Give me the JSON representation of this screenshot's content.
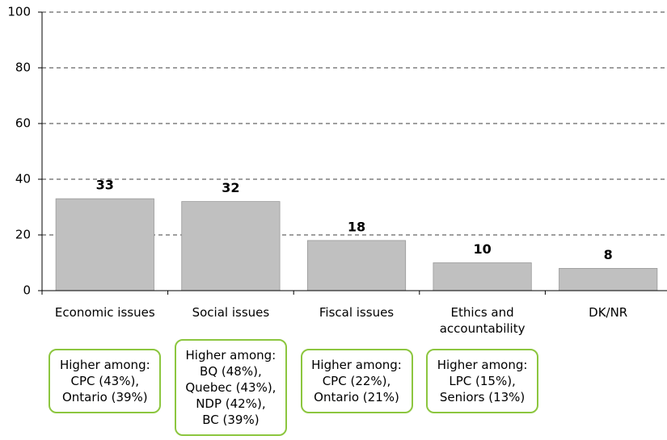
{
  "chart_data": {
    "type": "bar",
    "categories": [
      "Economic issues",
      "Social issues",
      "Fiscal issues",
      "Ethics and accountability",
      "DK/NR"
    ],
    "values": [
      33,
      32,
      18,
      10,
      8
    ],
    "color": "#c0c0c0",
    "ylim": [
      0,
      100
    ],
    "yticks": [
      0,
      20,
      40,
      60,
      80,
      100
    ],
    "grid": true,
    "annotations": [
      [
        "Higher among:",
        "CPC (43%),",
        "Ontario (39%)"
      ],
      [
        "Higher among:",
        "BQ (48%),",
        "Quebec (43%),",
        "NDP (42%),",
        "BC (39%)"
      ],
      [
        "Higher among:",
        "CPC (22%),",
        "Ontario (21%)"
      ],
      [
        "Higher among:",
        "LPC (15%),",
        "Seniors (13%)"
      ],
      null
    ]
  }
}
